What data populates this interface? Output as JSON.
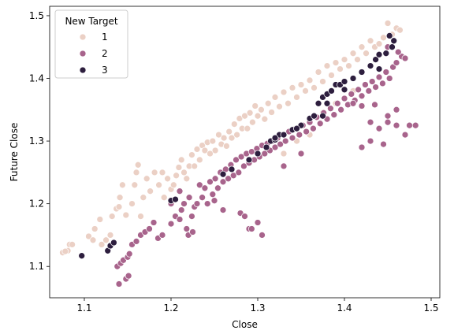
{
  "chart_data": {
    "type": "scatter",
    "xlabel": "Close",
    "ylabel": "Future Close",
    "xlim": [
      1.06,
      1.51
    ],
    "ylim": [
      1.05,
      1.515
    ],
    "xticks": [
      1.1,
      1.2,
      1.3,
      1.4,
      1.5
    ],
    "xtick_labels": [
      "1.1",
      "1.2",
      "1.3",
      "1.4",
      "1.5"
    ],
    "yticks": [
      1.1,
      1.2,
      1.3,
      1.4,
      1.5
    ],
    "ytick_labels": [
      "1.1",
      "1.2",
      "1.3",
      "1.4",
      "1.5"
    ],
    "grid": false,
    "legend": {
      "title": "New Target",
      "placement": "top-left"
    },
    "series": [
      {
        "name": "1",
        "color": "#ebd0c5",
        "points": [
          [
            1.075,
            1.122
          ],
          [
            1.081,
            1.125
          ],
          [
            1.083,
            1.135
          ],
          [
            1.086,
            1.135
          ],
          [
            1.078,
            1.124
          ],
          [
            1.105,
            1.148
          ],
          [
            1.11,
            1.142
          ],
          [
            1.112,
            1.16
          ],
          [
            1.118,
            1.175
          ],
          [
            1.12,
            1.135
          ],
          [
            1.125,
            1.142
          ],
          [
            1.13,
            1.15
          ],
          [
            1.132,
            1.18
          ],
          [
            1.137,
            1.192
          ],
          [
            1.14,
            1.195
          ],
          [
            1.141,
            1.21
          ],
          [
            1.144,
            1.23
          ],
          [
            1.148,
            1.182
          ],
          [
            1.155,
            1.2
          ],
          [
            1.158,
            1.23
          ],
          [
            1.16,
            1.25
          ],
          [
            1.162,
            1.262
          ],
          [
            1.165,
            1.18
          ],
          [
            1.168,
            1.21
          ],
          [
            1.172,
            1.24
          ],
          [
            1.176,
            1.22
          ],
          [
            1.181,
            1.25
          ],
          [
            1.186,
            1.23
          ],
          [
            1.19,
            1.25
          ],
          [
            1.192,
            1.21
          ],
          [
            1.196,
            1.24
          ],
          [
            1.2,
            1.223
          ],
          [
            1.203,
            1.23
          ],
          [
            1.206,
            1.245
          ],
          [
            1.209,
            1.258
          ],
          [
            1.212,
            1.27
          ],
          [
            1.215,
            1.25
          ],
          [
            1.218,
            1.24
          ],
          [
            1.221,
            1.26
          ],
          [
            1.224,
            1.278
          ],
          [
            1.227,
            1.26
          ],
          [
            1.23,
            1.287
          ],
          [
            1.233,
            1.27
          ],
          [
            1.236,
            1.293
          ],
          [
            1.239,
            1.285
          ],
          [
            1.242,
            1.298
          ],
          [
            1.245,
            1.28
          ],
          [
            1.248,
            1.3
          ],
          [
            1.251,
            1.285
          ],
          [
            1.255,
            1.31
          ],
          [
            1.258,
            1.295
          ],
          [
            1.261,
            1.305
          ],
          [
            1.264,
            1.292
          ],
          [
            1.267,
            1.315
          ],
          [
            1.27,
            1.305
          ],
          [
            1.273,
            1.327
          ],
          [
            1.276,
            1.31
          ],
          [
            1.279,
            1.336
          ],
          [
            1.282,
            1.32
          ],
          [
            1.285,
            1.34
          ],
          [
            1.288,
            1.32
          ],
          [
            1.291,
            1.345
          ],
          [
            1.294,
            1.33
          ],
          [
            1.297,
            1.356
          ],
          [
            1.3,
            1.34
          ],
          [
            1.304,
            1.35
          ],
          [
            1.308,
            1.335
          ],
          [
            1.312,
            1.36
          ],
          [
            1.316,
            1.346
          ],
          [
            1.32,
            1.37
          ],
          [
            1.325,
            1.355
          ],
          [
            1.33,
            1.378
          ],
          [
            1.335,
            1.36
          ],
          [
            1.34,
            1.385
          ],
          [
            1.345,
            1.37
          ],
          [
            1.35,
            1.39
          ],
          [
            1.355,
            1.38
          ],
          [
            1.36,
            1.397
          ],
          [
            1.365,
            1.385
          ],
          [
            1.37,
            1.41
          ],
          [
            1.375,
            1.395
          ],
          [
            1.38,
            1.42
          ],
          [
            1.385,
            1.405
          ],
          [
            1.39,
            1.425
          ],
          [
            1.395,
            1.415
          ],
          [
            1.4,
            1.43
          ],
          [
            1.405,
            1.42
          ],
          [
            1.41,
            1.44
          ],
          [
            1.415,
            1.43
          ],
          [
            1.42,
            1.45
          ],
          [
            1.425,
            1.44
          ],
          [
            1.43,
            1.46
          ],
          [
            1.435,
            1.45
          ],
          [
            1.44,
            1.455
          ],
          [
            1.445,
            1.465
          ],
          [
            1.45,
            1.488
          ],
          [
            1.455,
            1.47
          ],
          [
            1.46,
            1.48
          ],
          [
            1.464,
            1.477
          ],
          [
            1.33,
            1.28
          ],
          [
            1.345,
            1.3
          ],
          [
            1.36,
            1.31
          ],
          [
            1.375,
            1.345
          ],
          [
            1.39,
            1.36
          ],
          [
            1.41,
            1.38
          ]
        ]
      },
      {
        "name": "2",
        "color": "#a8648c",
        "points": [
          [
            1.14,
            1.072
          ],
          [
            1.148,
            1.08
          ],
          [
            1.151,
            1.085
          ],
          [
            1.138,
            1.1
          ],
          [
            1.142,
            1.105
          ],
          [
            1.145,
            1.11
          ],
          [
            1.15,
            1.115
          ],
          [
            1.152,
            1.12
          ],
          [
            1.155,
            1.135
          ],
          [
            1.16,
            1.14
          ],
          [
            1.165,
            1.15
          ],
          [
            1.17,
            1.155
          ],
          [
            1.175,
            1.16
          ],
          [
            1.18,
            1.17
          ],
          [
            1.185,
            1.145
          ],
          [
            1.19,
            1.15
          ],
          [
            1.2,
            1.168
          ],
          [
            1.205,
            1.18
          ],
          [
            1.21,
            1.175
          ],
          [
            1.212,
            1.19
          ],
          [
            1.215,
            1.2
          ],
          [
            1.218,
            1.16
          ],
          [
            1.221,
            1.21
          ],
          [
            1.224,
            1.18
          ],
          [
            1.227,
            1.195
          ],
          [
            1.23,
            1.2
          ],
          [
            1.233,
            1.23
          ],
          [
            1.236,
            1.21
          ],
          [
            1.239,
            1.225
          ],
          [
            1.242,
            1.2
          ],
          [
            1.245,
            1.235
          ],
          [
            1.248,
            1.215
          ],
          [
            1.251,
            1.24
          ],
          [
            1.254,
            1.225
          ],
          [
            1.257,
            1.25
          ],
          [
            1.26,
            1.235
          ],
          [
            1.263,
            1.255
          ],
          [
            1.266,
            1.24
          ],
          [
            1.269,
            1.262
          ],
          [
            1.272,
            1.245
          ],
          [
            1.275,
            1.27
          ],
          [
            1.278,
            1.25
          ],
          [
            1.281,
            1.275
          ],
          [
            1.284,
            1.26
          ],
          [
            1.287,
            1.28
          ],
          [
            1.29,
            1.265
          ],
          [
            1.293,
            1.283
          ],
          [
            1.296,
            1.27
          ],
          [
            1.299,
            1.288
          ],
          [
            1.302,
            1.275
          ],
          [
            1.305,
            1.293
          ],
          [
            1.308,
            1.28
          ],
          [
            1.311,
            1.296
          ],
          [
            1.314,
            1.285
          ],
          [
            1.317,
            1.3
          ],
          [
            1.32,
            1.29
          ],
          [
            1.323,
            1.305
          ],
          [
            1.326,
            1.295
          ],
          [
            1.329,
            1.31
          ],
          [
            1.332,
            1.3
          ],
          [
            1.336,
            1.315
          ],
          [
            1.34,
            1.305
          ],
          [
            1.344,
            1.32
          ],
          [
            1.348,
            1.31
          ],
          [
            1.352,
            1.325
          ],
          [
            1.356,
            1.315
          ],
          [
            1.36,
            1.33
          ],
          [
            1.364,
            1.32
          ],
          [
            1.368,
            1.338
          ],
          [
            1.372,
            1.328
          ],
          [
            1.376,
            1.345
          ],
          [
            1.38,
            1.335
          ],
          [
            1.384,
            1.352
          ],
          [
            1.388,
            1.342
          ],
          [
            1.392,
            1.36
          ],
          [
            1.396,
            1.35
          ],
          [
            1.4,
            1.368
          ],
          [
            1.404,
            1.358
          ],
          [
            1.408,
            1.375
          ],
          [
            1.412,
            1.365
          ],
          [
            1.416,
            1.382
          ],
          [
            1.42,
            1.372
          ],
          [
            1.424,
            1.39
          ],
          [
            1.428,
            1.38
          ],
          [
            1.432,
            1.395
          ],
          [
            1.436,
            1.386
          ],
          [
            1.44,
            1.402
          ],
          [
            1.444,
            1.392
          ],
          [
            1.448,
            1.41
          ],
          [
            1.452,
            1.4
          ],
          [
            1.456,
            1.418
          ],
          [
            1.46,
            1.425
          ],
          [
            1.466,
            1.435
          ],
          [
            1.47,
            1.432
          ],
          [
            1.462,
            1.442
          ],
          [
            1.45,
            1.45
          ],
          [
            1.42,
            1.29
          ],
          [
            1.43,
            1.3
          ],
          [
            1.445,
            1.295
          ],
          [
            1.46,
            1.325
          ],
          [
            1.475,
            1.325
          ],
          [
            1.482,
            1.325
          ],
          [
            1.47,
            1.31
          ],
          [
            1.43,
            1.33
          ],
          [
            1.44,
            1.32
          ],
          [
            1.45,
            1.33
          ],
          [
            1.28,
            1.185
          ],
          [
            1.285,
            1.18
          ],
          [
            1.3,
            1.17
          ],
          [
            1.305,
            1.15
          ],
          [
            1.29,
            1.16
          ],
          [
            1.293,
            1.16
          ],
          [
            1.26,
            1.19
          ],
          [
            1.22,
            1.15
          ],
          [
            1.225,
            1.155
          ],
          [
            1.42,
            1.356
          ],
          [
            1.435,
            1.358
          ],
          [
            1.45,
            1.34
          ],
          [
            1.46,
            1.35
          ],
          [
            1.41,
            1.36
          ],
          [
            1.2,
            1.2
          ],
          [
            1.21,
            1.22
          ],
          [
            1.25,
            1.205
          ],
          [
            1.33,
            1.26
          ],
          [
            1.35,
            1.28
          ]
        ]
      },
      {
        "name": "3",
        "color": "#2d1e3e",
        "points": [
          [
            1.097,
            1.117
          ],
          [
            1.127,
            1.125
          ],
          [
            1.13,
            1.133
          ],
          [
            1.134,
            1.138
          ],
          [
            1.2,
            1.205
          ],
          [
            1.205,
            1.207
          ],
          [
            1.26,
            1.247
          ],
          [
            1.27,
            1.255
          ],
          [
            1.29,
            1.27
          ],
          [
            1.3,
            1.28
          ],
          [
            1.31,
            1.29
          ],
          [
            1.315,
            1.3
          ],
          [
            1.32,
            1.302
          ],
          [
            1.325,
            1.31
          ],
          [
            1.33,
            1.31
          ],
          [
            1.34,
            1.318
          ],
          [
            1.345,
            1.32
          ],
          [
            1.35,
            1.325
          ],
          [
            1.36,
            1.336
          ],
          [
            1.365,
            1.34
          ],
          [
            1.37,
            1.36
          ],
          [
            1.375,
            1.37
          ],
          [
            1.38,
            1.375
          ],
          [
            1.385,
            1.38
          ],
          [
            1.39,
            1.39
          ],
          [
            1.395,
            1.39
          ],
          [
            1.4,
            1.395
          ],
          [
            1.41,
            1.4
          ],
          [
            1.42,
            1.41
          ],
          [
            1.43,
            1.42
          ],
          [
            1.436,
            1.43
          ],
          [
            1.44,
            1.438
          ],
          [
            1.448,
            1.44
          ],
          [
            1.455,
            1.45
          ],
          [
            1.452,
            1.468
          ],
          [
            1.44,
            1.415
          ],
          [
            1.457,
            1.46
          ],
          [
            1.32,
            1.305
          ],
          [
            1.38,
            1.36
          ],
          [
            1.4,
            1.382
          ],
          [
            1.345,
            1.32
          ],
          [
            1.375,
            1.34
          ]
        ]
      }
    ]
  }
}
